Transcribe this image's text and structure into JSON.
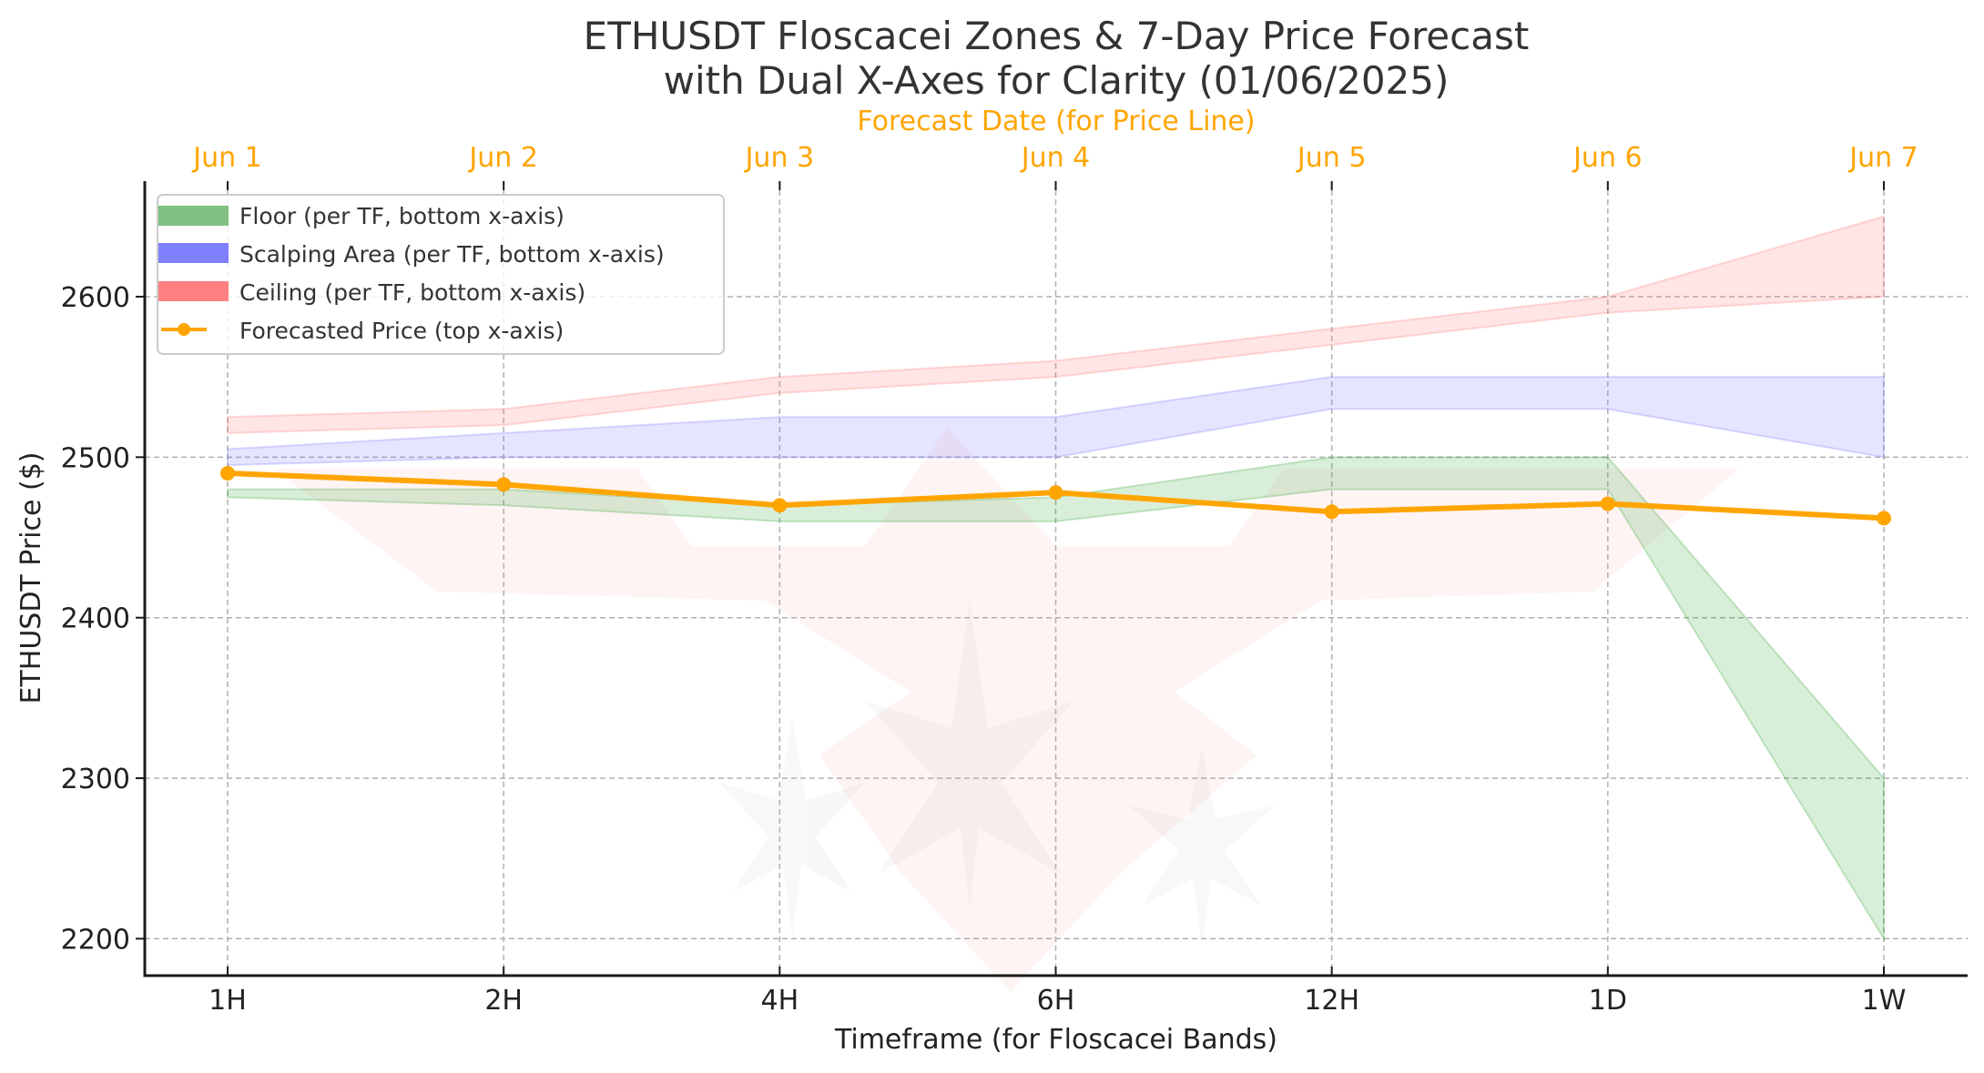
{
  "chart_data": {
    "type": "area",
    "title_lines": [
      "ETHUSDT Floscacei Zones & 7-Day Price Forecast",
      "with Dual X-Axes for Clarity (01/06/2025)"
    ],
    "xlabel": "Timeframe (for Floscacei Bands)",
    "x2label": "Forecast Date (for Price Line)",
    "ylabel": "ETHUSDT Price ($)",
    "categories": [
      "1H",
      "2H",
      "4H",
      "6H",
      "12H",
      "1D",
      "1W"
    ],
    "top_categories": [
      "Jun 1",
      "Jun 2",
      "Jun 3",
      "Jun 4",
      "Jun 5",
      "Jun 6",
      "Jun 7"
    ],
    "ylim": [
      2177,
      2672
    ],
    "yticks": [
      2200,
      2300,
      2400,
      2500,
      2600
    ],
    "grid": true,
    "legend_position": "top-left",
    "bands": [
      {
        "name": "Floor (per TF, bottom x-axis)",
        "color": "#2ca02c",
        "legend_color": "#80c080",
        "low": [
          2475,
          2470,
          2460,
          2460,
          2480,
          2480,
          2200
        ],
        "high": [
          2480,
          2480,
          2470,
          2475,
          2500,
          2500,
          2300
        ]
      },
      {
        "name": "Scalping Area (per TF, bottom x-axis)",
        "color": "#7070ff",
        "legend_color": "#8080ff",
        "low": [
          2495,
          2500,
          2500,
          2500,
          2530,
          2530,
          2500
        ],
        "high": [
          2505,
          2515,
          2525,
          2525,
          2550,
          2550,
          2550
        ]
      },
      {
        "name": "Ceiling (per TF, bottom x-axis)",
        "color": "#ff7070",
        "legend_color": "#ff8080",
        "low": [
          2515,
          2520,
          2540,
          2550,
          2570,
          2590,
          2600
        ],
        "high": [
          2525,
          2530,
          2550,
          2560,
          2580,
          2600,
          2650
        ]
      }
    ],
    "series": [
      {
        "name": "Forecasted Price (top x-axis)",
        "color": "#ffa500",
        "values": [
          2490,
          2483,
          2470,
          2478,
          2466,
          2471,
          2462
        ]
      }
    ],
    "colors": {
      "top_axis": "#ffa500",
      "grid": "#b0b0b0",
      "axis": "#1a1a1a"
    }
  }
}
